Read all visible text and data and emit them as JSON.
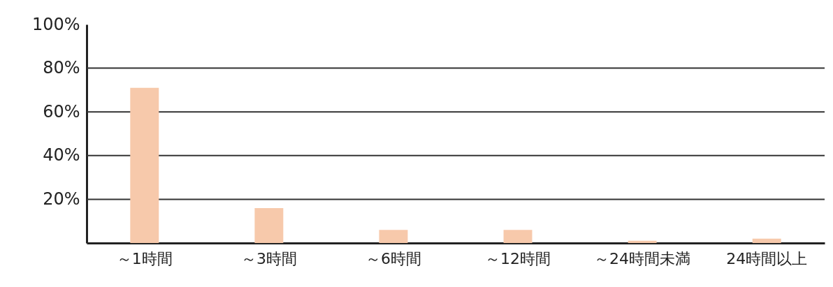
{
  "chart_data": {
    "type": "bar",
    "categories": [
      "～1時間",
      "～3時間",
      "～6時間",
      "～12時間",
      "～24時間未満",
      "24時間以上"
    ],
    "values": [
      71,
      16,
      6,
      6,
      1,
      2
    ],
    "color": "#f7c9ab",
    "ylim": [
      0,
      100
    ],
    "yticks": [
      {
        "value": 0,
        "label": null
      },
      {
        "value": 20,
        "label": "20%"
      },
      {
        "value": 40,
        "label": "40%"
      },
      {
        "value": 60,
        "label": "60%"
      },
      {
        "value": 80,
        "label": "80%"
      },
      {
        "value": 100,
        "label": "100%"
      }
    ],
    "grid": "y"
  }
}
